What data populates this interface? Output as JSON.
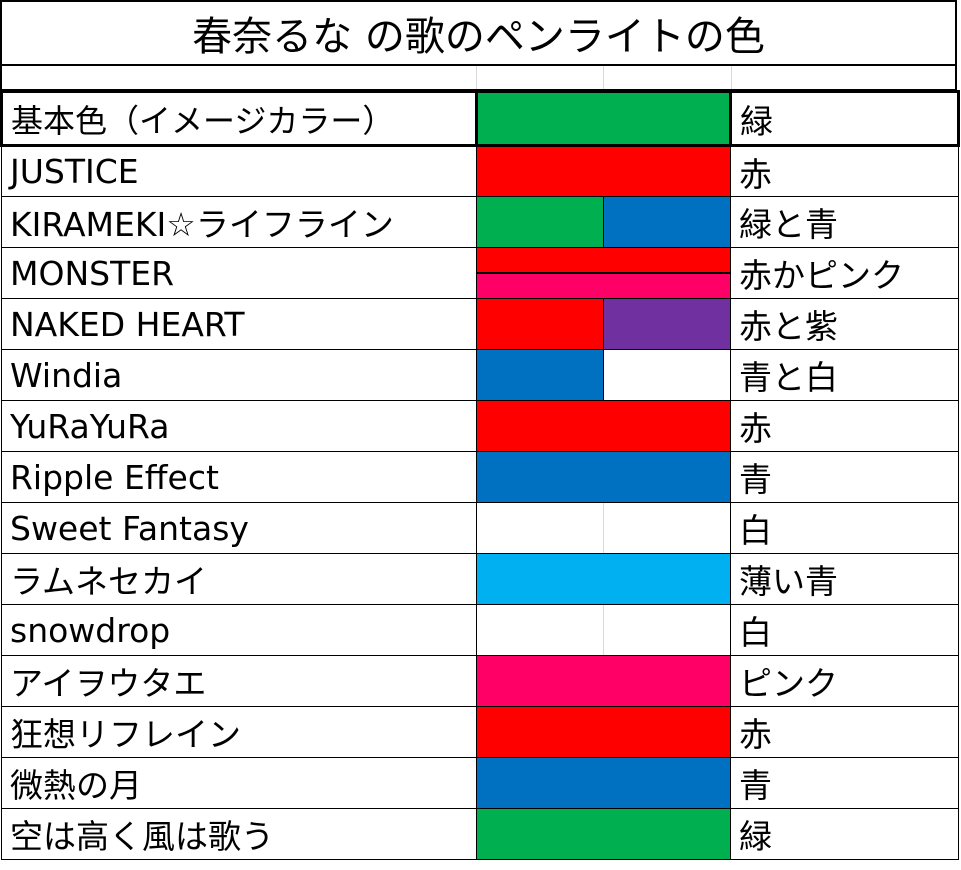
{
  "title": "春奈るな の歌のペンライトの色",
  "colors": {
    "green": "#00b050",
    "red": "#ff0000",
    "blue": "#0070c0",
    "pink": "#ff0066",
    "purple": "#7030a0",
    "light_blue": "#00b0f0",
    "white": "#ffffff"
  },
  "base": {
    "name": "基本色（イメージカラー）",
    "label": "緑",
    "swatch": [
      "green"
    ]
  },
  "songs": [
    {
      "name": "JUSTICE",
      "label": "赤",
      "swatch": [
        "red"
      ],
      "split": "none"
    },
    {
      "name": "KIRAMEKI☆ライフライン",
      "label": "緑と青",
      "swatch": [
        "green",
        "blue"
      ],
      "split": "h"
    },
    {
      "name": "MONSTER",
      "label": "赤かピンク",
      "swatch": [
        "red",
        "pink"
      ],
      "split": "v"
    },
    {
      "name": "NAKED HEART",
      "label": "赤と紫",
      "swatch": [
        "red",
        "purple"
      ],
      "split": "h"
    },
    {
      "name": "Windia",
      "label": "青と白",
      "swatch": [
        "blue",
        "white"
      ],
      "split": "h"
    },
    {
      "name": "YuRaYuRa",
      "label": "赤",
      "swatch": [
        "red"
      ],
      "split": "none"
    },
    {
      "name": "Ripple Effect",
      "label": "青",
      "swatch": [
        "blue"
      ],
      "split": "none"
    },
    {
      "name": "Sweet Fantasy",
      "label": "白",
      "swatch": [
        "white"
      ],
      "split": "empty"
    },
    {
      "name": "ラムネセカイ",
      "label": "薄い青",
      "swatch": [
        "light_blue"
      ],
      "split": "none"
    },
    {
      "name": "snowdrop",
      "label": "白",
      "swatch": [
        "white"
      ],
      "split": "empty"
    },
    {
      "name": "アイヲウタエ",
      "label": "ピンク",
      "swatch": [
        "pink"
      ],
      "split": "none"
    },
    {
      "name": "狂想リフレイン",
      "label": "赤",
      "swatch": [
        "red"
      ],
      "split": "none"
    },
    {
      "name": "微熱の月",
      "label": "青",
      "swatch": [
        "blue"
      ],
      "split": "none"
    },
    {
      "name": "空は高く風は歌う",
      "label": "緑",
      "swatch": [
        "green"
      ],
      "split": "none"
    }
  ]
}
